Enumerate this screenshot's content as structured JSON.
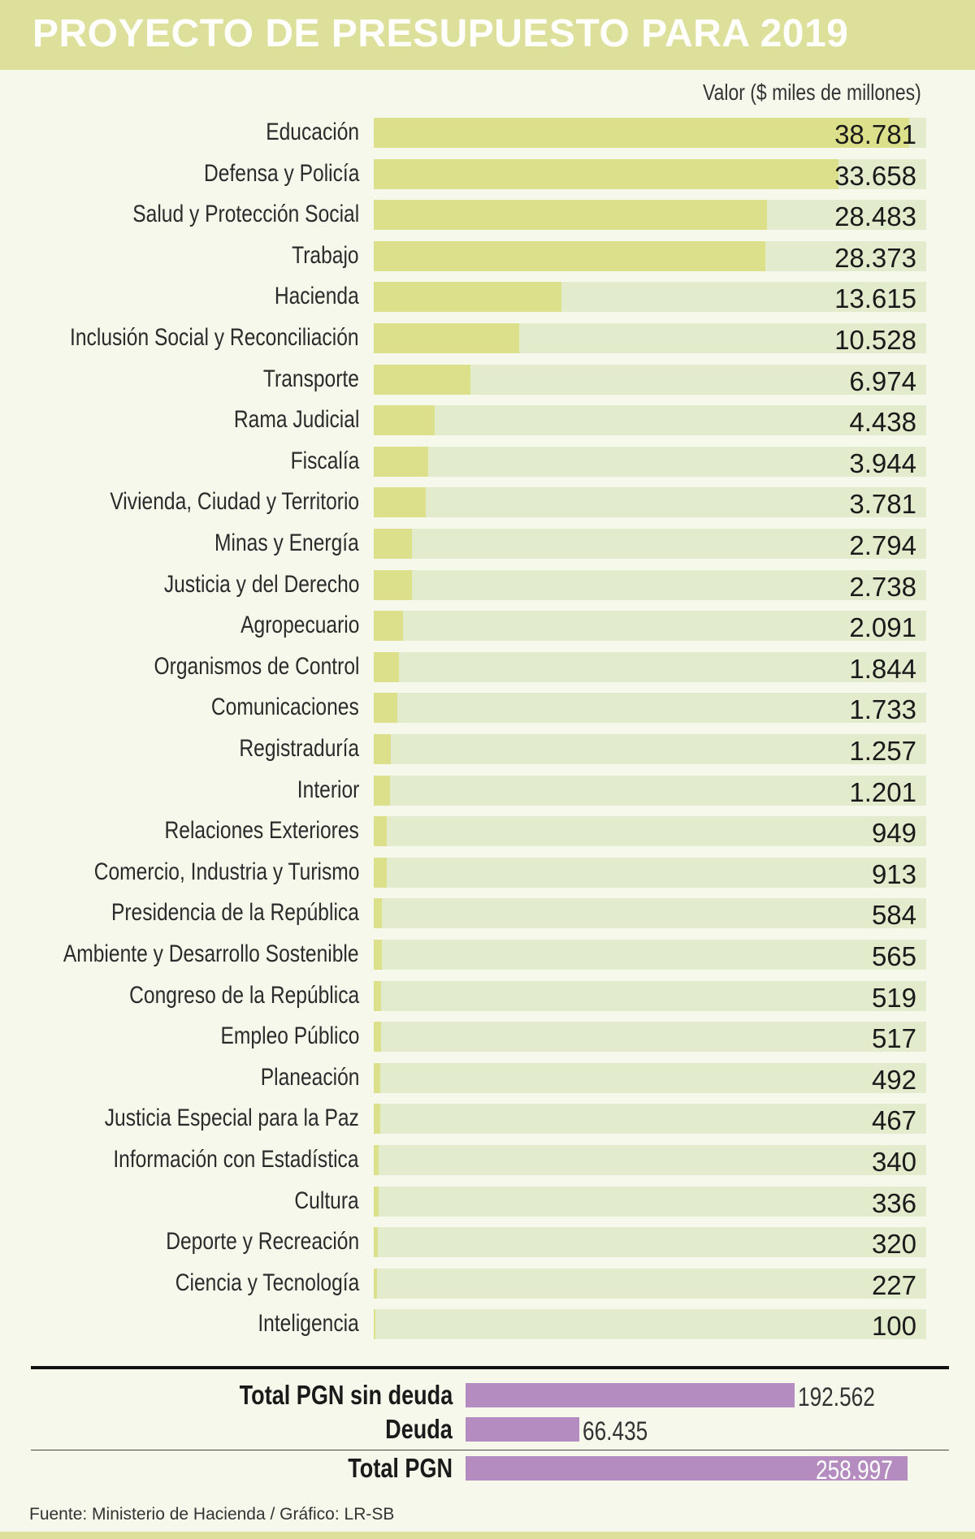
{
  "title": "PROYECTO DE PRESUPUESTO PARA 2019",
  "unit_label": "Valor ($ miles de millones)",
  "source": "Fuente: Ministerio de Hacienda / Gráfico: LR-SB",
  "colors": {
    "header": "#dde09a",
    "bar_fill": "#dde08a",
    "bar_track": "#e3ebcd",
    "totals_bar": "#b48cc0"
  },
  "chart_data": {
    "type": "bar",
    "orientation": "horizontal",
    "categories": [
      "Educación",
      "Defensa y Policía",
      "Salud y Protección Social",
      "Trabajo",
      "Hacienda",
      "Inclusión Social y Reconciliación",
      "Transporte",
      "Rama Judicial",
      "Fiscalía",
      "Vivienda, Ciudad y Territorio",
      "Minas y Energía",
      "Justicia y del Derecho",
      "Agropecuario",
      "Organismos de Control",
      "Comunicaciones",
      "Registraduría",
      "Interior",
      "Relaciones Exteriores",
      "Comercio, Industria y Turismo",
      "Presidencia de la República",
      "Ambiente y Desarrollo Sostenible",
      "Congreso de la República",
      "Empleo Público",
      "Planeación",
      "Justicia Especial para la Paz",
      "Información con Estadística",
      "Cultura",
      "Deporte y Recreación",
      "Ciencia y Tecnología",
      "Inteligencia"
    ],
    "values": [
      38781,
      33658,
      28483,
      28373,
      13615,
      10528,
      6974,
      4438,
      3944,
      3781,
      2794,
      2738,
      2091,
      1844,
      1733,
      1257,
      1201,
      949,
      913,
      584,
      565,
      519,
      517,
      492,
      467,
      340,
      336,
      320,
      227,
      100
    ],
    "value_labels": [
      "38.781",
      "33.658",
      "28.483",
      "28.373",
      "13.615",
      "10.528",
      "6.974",
      "4.438",
      "3.944",
      "3.781",
      "2.794",
      "2.738",
      "2.091",
      "1.844",
      "1.733",
      "1.257",
      "1.201",
      "949",
      "913",
      "584",
      "565",
      "519",
      "517",
      "492",
      "467",
      "340",
      "336",
      "320",
      "227",
      "100"
    ],
    "xlim": [
      0,
      40000
    ],
    "totals": {
      "type": "bar",
      "categories": [
        "Total PGN sin deuda",
        "Deuda",
        "Total PGN"
      ],
      "values": [
        192562,
        66435,
        258997
      ],
      "value_labels": [
        "192.562",
        "66.435",
        "258.997"
      ],
      "xlim": [
        0,
        265000
      ]
    }
  }
}
